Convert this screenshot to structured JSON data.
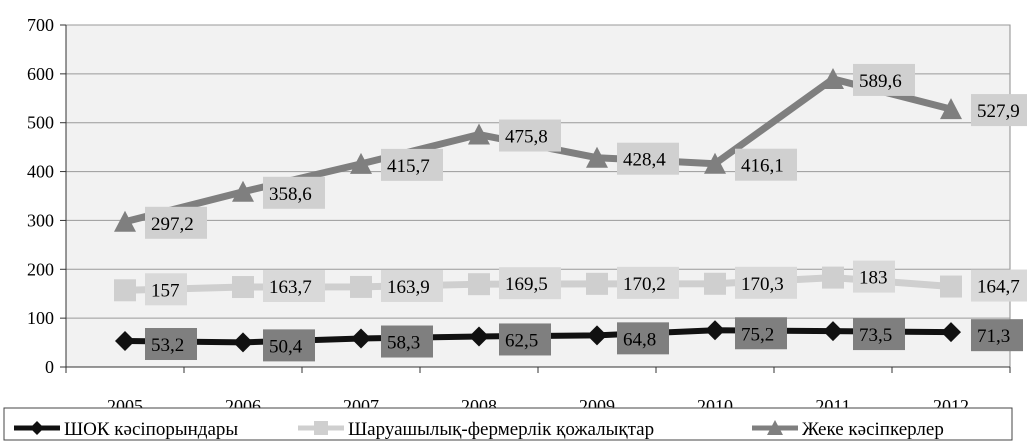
{
  "chart_data": {
    "type": "line",
    "title": "",
    "xlabel": "",
    "ylabel": "",
    "categories": [
      "2005",
      "2006",
      "2007",
      "2008",
      "2009",
      "2010",
      "2011",
      "2012"
    ],
    "ylim": [
      0,
      700
    ],
    "yticks": [
      "0",
      "100",
      "200",
      "300",
      "400",
      "500",
      "600",
      "700"
    ],
    "grid": true,
    "legend_position": "bottom",
    "series": [
      {
        "name": "ШОК кәсіпорындары",
        "marker": "diamond",
        "color": "#111111",
        "values": [
          53.2,
          50.4,
          58.3,
          62.5,
          64.8,
          75.2,
          73.5,
          71.3
        ],
        "labels": [
          "53,2",
          "50,4",
          "58,3",
          "62,5",
          "64,8",
          "75,2",
          "73,5",
          "71,3"
        ]
      },
      {
        "name": "Шаруашылық-фермерлік қожалықтар",
        "marker": "square",
        "color": "#cfcfcf",
        "values": [
          157,
          163.7,
          163.9,
          169.5,
          170.2,
          170.3,
          183,
          164.7
        ],
        "labels": [
          "157",
          "163,7",
          "163,9",
          "169,5",
          "170,2",
          "170,3",
          "183",
          "164,7"
        ]
      },
      {
        "name": "Жеке кәсіпкерлер",
        "marker": "triangle",
        "color": "#7f7f7f",
        "values": [
          297.2,
          358.6,
          415.7,
          475.8,
          428.4,
          416.1,
          589.6,
          527.9
        ],
        "labels": [
          "297,2",
          "358,6",
          "415,7",
          "475,8",
          "428,4",
          "416,1",
          "589,6",
          "527,9"
        ]
      }
    ]
  }
}
